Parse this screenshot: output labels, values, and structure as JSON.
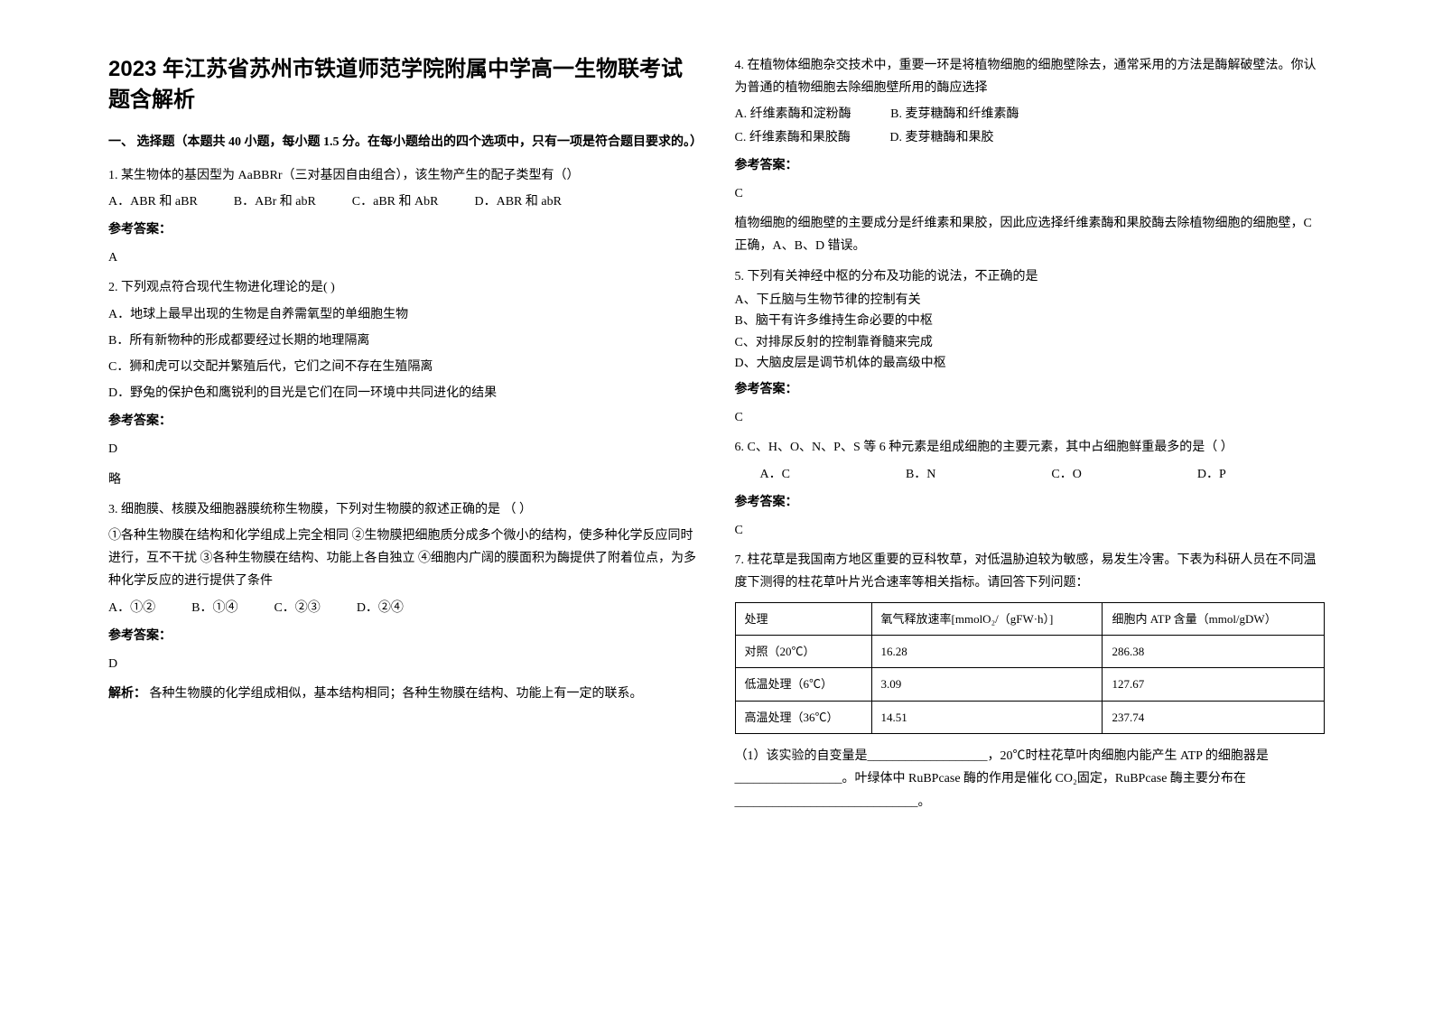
{
  "title": "2023 年江苏省苏州市铁道师范学院附属中学高一生物联考试题含解析",
  "section1_header": "一、 选择题（本题共 40 小题，每小题 1.5 分。在每小题给出的四个选项中，只有一项是符合题目要求的。）",
  "q1": {
    "text": "1. 某生物体的基因型为 AaBBRr（三对基因自由组合），该生物产生的配子类型有（）",
    "opts": [
      "A．ABR 和 aBR",
      "B．ABr 和 abR",
      "C．aBR 和 AbR",
      "D．ABR 和 abR"
    ],
    "answer_label": "参考答案：",
    "answer": "A"
  },
  "q2": {
    "text": "2. 下列观点符合现代生物进化理论的是(    )",
    "opts": [
      "A．地球上最早出现的生物是自养需氧型的单细胞生物",
      "B．所有新物种的形成都要经过长期的地理隔离",
      "C．狮和虎可以交配并繁殖后代，它们之间不存在生殖隔离",
      "D．野兔的保护色和鹰锐利的目光是它们在同一环境中共同进化的结果"
    ],
    "answer_label": "参考答案：",
    "answer": "D",
    "note": "略"
  },
  "q3": {
    "text": "3. 细胞膜、核膜及细胞器膜统称生物膜，下列对生物膜的叙述正确的是          （  ）",
    "desc": "①各种生物膜在结构和化学组成上完全相同  ②生物膜把细胞质分成多个微小的结构，使多种化学反应同时进行，互不干扰  ③各种生物膜在结构、功能上各自独立  ④细胞内广阔的膜面积为酶提供了附着位点，为多种化学反应的进行提供了条件",
    "opts": [
      "A．①②",
      "B．①④",
      "C．②③",
      "D．②④"
    ],
    "answer_label": "参考答案：",
    "answer": "D",
    "explanation_label": "解析：",
    "explanation": " 各种生物膜的化学组成相似，基本结构相同；各种生物膜在结构、功能上有一定的联系。"
  },
  "q4": {
    "text": "4. 在植物体细胞杂交技术中，重要一环是将植物细胞的细胞壁除去，通常采用的方法是酶解破壁法。你认为普通的植物细胞去除细胞壁所用的酶应选择",
    "opts": [
      "A.  纤维素酶和淀粉酶",
      "B.  麦芽糖酶和纤维素酶",
      "C.  纤维素酶和果胶酶",
      "D.  麦芽糖酶和果胶"
    ],
    "answer_label": "参考答案：",
    "answer": "C",
    "explanation": "植物细胞的细胞壁的主要成分是纤维素和果胶，因此应选择纤维素酶和果胶酶去除植物细胞的细胞壁，C 正确，A、B、D 错误。"
  },
  "q5": {
    "text": "5. 下列有关神经中枢的分布及功能的说法，不正确的是",
    "opts": [
      "A、下丘脑与生物节律的控制有关",
      "B、脑干有许多维持生命必要的中枢",
      "C、对排尿反射的控制靠脊髓来完成",
      "D、大脑皮层是调节机体的最高级中枢"
    ],
    "answer_label": "参考答案：",
    "answer": "C"
  },
  "q6": {
    "text": "6. C、H、O、N、P、S 等 6 种元素是组成细胞的主要元素，其中占细胞鲜重最多的是（  ）",
    "opts": [
      "A．C",
      "B．N",
      "C．O",
      "D．P"
    ],
    "answer_label": "参考答案：",
    "answer": "C"
  },
  "q7": {
    "text": "7. 柱花草是我国南方地区重要的豆科牧草，对低温胁迫较为敏感，易发生冷害。下表为科研人员在不同温度下测得的柱花草叶片光合速率等相关指标。请回答下列问题：",
    "table": {
      "headers": [
        "处理",
        "氧气释放速率[mmolO₂/（gFW·h）]",
        "细胞内 ATP 含量（mmol/gDW）"
      ],
      "rows": [
        [
          "对照（20℃）",
          "16.28",
          "286.38"
        ],
        [
          "低温处理（6℃）",
          "3.09",
          "127.67"
        ],
        [
          "高温处理（36℃）",
          "14.51",
          "237.74"
        ]
      ]
    },
    "sub1": "（1）该实验的自变量是___________________，20℃时柱花草叶肉细胞内能产生 ATP 的细胞器是_________________。叶绿体中 RuBPcase 酶的作用是催化 CO₂固定，RuBPcase 酶主要分布在_____________________________。"
  }
}
